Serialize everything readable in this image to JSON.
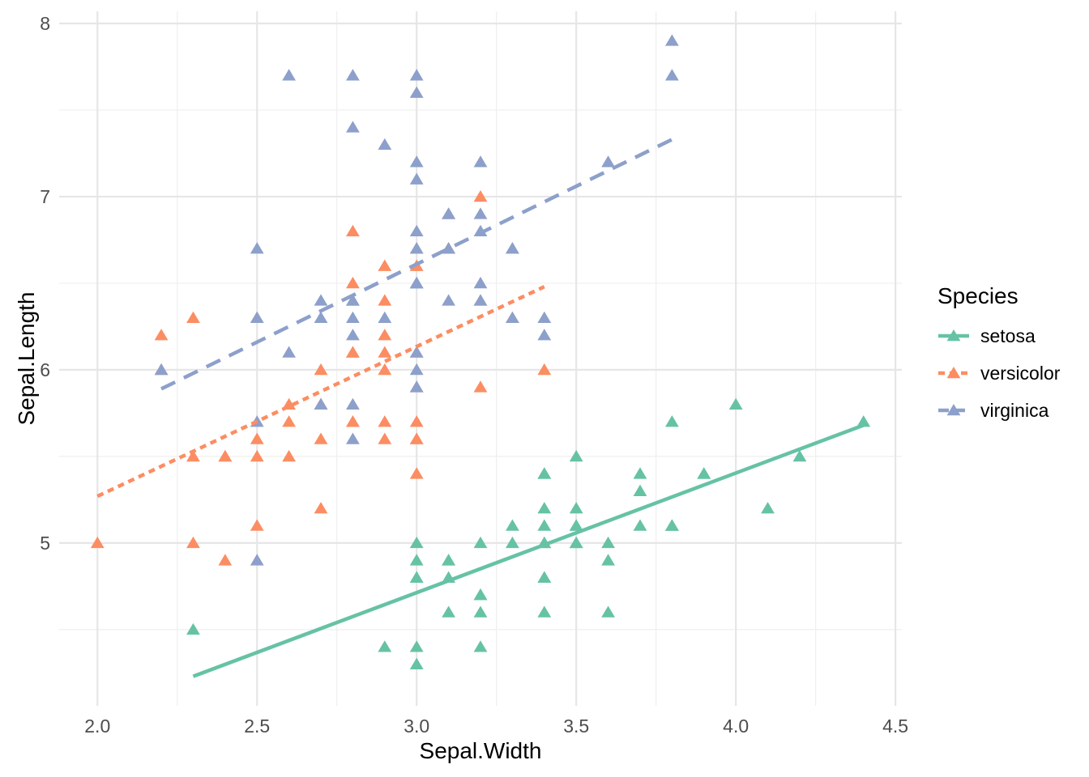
{
  "chart_data": {
    "type": "scatter",
    "title": "",
    "xlabel": "Sepal.Width",
    "ylabel": "Sepal.Length",
    "legend_title": "Species",
    "legend_position": "right",
    "marker": "filled-triangle",
    "grid": true,
    "background": "#ffffff",
    "grid_major_color": "#e6e6e6",
    "grid_minor_color": "#efefef",
    "tick_text_color": "#4d4d4d",
    "xlim": [
      1.88,
      4.52
    ],
    "ylim": [
      4.06,
      8.07
    ],
    "x_ticks": [
      2.0,
      2.5,
      3.0,
      3.5,
      4.0,
      4.5
    ],
    "x_tick_labels": [
      "2.0",
      "2.5",
      "3.0",
      "3.5",
      "4.0",
      "4.5"
    ],
    "x_minor_ticks": [
      2.25,
      2.75,
      3.25,
      3.75,
      4.25
    ],
    "y_ticks": [
      5,
      6,
      7,
      8
    ],
    "y_tick_labels": [
      "5",
      "6",
      "7",
      "8"
    ],
    "y_minor_ticks": [
      4.5,
      5.5,
      6.5,
      7.5
    ],
    "series": [
      {
        "name": "setosa",
        "color": "#66C2A5",
        "linetype": "solid",
        "trend_line": {
          "x": [
            2.3,
            4.4
          ],
          "y": [
            4.23,
            5.68
          ]
        },
        "points": [
          [
            3.5,
            5.1
          ],
          [
            3.0,
            4.9
          ],
          [
            3.2,
            4.7
          ],
          [
            3.1,
            4.6
          ],
          [
            3.6,
            5.0
          ],
          [
            3.9,
            5.4
          ],
          [
            3.4,
            4.6
          ],
          [
            3.4,
            5.0
          ],
          [
            2.9,
            4.4
          ],
          [
            3.1,
            4.9
          ],
          [
            3.7,
            5.4
          ],
          [
            3.4,
            4.8
          ],
          [
            3.0,
            4.8
          ],
          [
            3.0,
            4.3
          ],
          [
            4.0,
            5.8
          ],
          [
            4.4,
            5.7
          ],
          [
            3.9,
            5.4
          ],
          [
            3.5,
            5.1
          ],
          [
            3.8,
            5.7
          ],
          [
            3.8,
            5.1
          ],
          [
            3.4,
            5.4
          ],
          [
            3.7,
            5.1
          ],
          [
            3.6,
            4.6
          ],
          [
            3.3,
            5.1
          ],
          [
            3.4,
            4.8
          ],
          [
            3.0,
            5.0
          ],
          [
            3.4,
            5.0
          ],
          [
            3.5,
            5.2
          ],
          [
            3.4,
            5.2
          ],
          [
            3.2,
            4.7
          ],
          [
            3.1,
            4.8
          ],
          [
            3.4,
            5.4
          ],
          [
            4.1,
            5.2
          ],
          [
            4.2,
            5.5
          ],
          [
            3.1,
            4.9
          ],
          [
            3.2,
            5.0
          ],
          [
            3.5,
            5.5
          ],
          [
            3.6,
            4.9
          ],
          [
            3.0,
            4.4
          ],
          [
            3.4,
            5.1
          ],
          [
            3.5,
            5.0
          ],
          [
            2.3,
            4.5
          ],
          [
            3.2,
            4.4
          ],
          [
            3.5,
            5.0
          ],
          [
            3.8,
            5.1
          ],
          [
            3.0,
            4.8
          ],
          [
            3.8,
            5.1
          ],
          [
            3.2,
            4.6
          ],
          [
            3.7,
            5.3
          ],
          [
            3.3,
            5.0
          ]
        ]
      },
      {
        "name": "versicolor",
        "color": "#FC8D62",
        "linetype": "dotted",
        "trend_line": {
          "x": [
            2.0,
            3.4
          ],
          "y": [
            5.27,
            6.48
          ]
        },
        "points": [
          [
            3.2,
            7.0
          ],
          [
            3.2,
            6.4
          ],
          [
            3.1,
            6.9
          ],
          [
            2.3,
            5.5
          ],
          [
            2.8,
            6.5
          ],
          [
            2.8,
            5.7
          ],
          [
            3.3,
            6.3
          ],
          [
            2.4,
            4.9
          ],
          [
            2.9,
            6.6
          ],
          [
            2.7,
            5.2
          ],
          [
            2.0,
            5.0
          ],
          [
            3.0,
            5.9
          ],
          [
            2.2,
            6.0
          ],
          [
            2.9,
            6.1
          ],
          [
            2.9,
            5.6
          ],
          [
            3.1,
            6.7
          ],
          [
            3.0,
            5.6
          ],
          [
            2.7,
            5.8
          ],
          [
            2.2,
            6.2
          ],
          [
            2.5,
            5.6
          ],
          [
            3.2,
            5.9
          ],
          [
            2.8,
            6.1
          ],
          [
            2.5,
            6.3
          ],
          [
            2.8,
            6.1
          ],
          [
            2.9,
            6.4
          ],
          [
            3.0,
            6.6
          ],
          [
            2.8,
            6.8
          ],
          [
            3.0,
            6.7
          ],
          [
            2.9,
            6.0
          ],
          [
            2.6,
            5.7
          ],
          [
            2.4,
            5.5
          ],
          [
            2.4,
            5.5
          ],
          [
            2.7,
            5.8
          ],
          [
            2.7,
            6.0
          ],
          [
            3.0,
            5.4
          ],
          [
            3.4,
            6.0
          ],
          [
            3.1,
            6.7
          ],
          [
            2.3,
            6.3
          ],
          [
            3.0,
            5.6
          ],
          [
            2.5,
            5.5
          ],
          [
            2.6,
            5.5
          ],
          [
            3.0,
            6.1
          ],
          [
            2.6,
            5.8
          ],
          [
            2.3,
            5.0
          ],
          [
            2.7,
            5.6
          ],
          [
            3.0,
            5.7
          ],
          [
            2.9,
            5.7
          ],
          [
            2.9,
            6.2
          ],
          [
            2.5,
            5.1
          ],
          [
            2.8,
            5.7
          ]
        ]
      },
      {
        "name": "virginica",
        "color": "#8DA0CB",
        "linetype": "dashed",
        "trend_line": {
          "x": [
            2.2,
            3.8
          ],
          "y": [
            5.89,
            7.33
          ]
        },
        "points": [
          [
            3.3,
            6.3
          ],
          [
            2.7,
            5.8
          ],
          [
            3.0,
            7.1
          ],
          [
            2.9,
            6.3
          ],
          [
            3.0,
            6.5
          ],
          [
            3.0,
            7.6
          ],
          [
            2.5,
            4.9
          ],
          [
            2.9,
            7.3
          ],
          [
            2.5,
            6.7
          ],
          [
            3.6,
            7.2
          ],
          [
            3.2,
            6.5
          ],
          [
            2.7,
            6.4
          ],
          [
            3.0,
            6.8
          ],
          [
            2.5,
            5.7
          ],
          [
            2.8,
            5.8
          ],
          [
            3.2,
            6.4
          ],
          [
            3.0,
            6.5
          ],
          [
            3.8,
            7.7
          ],
          [
            2.6,
            7.7
          ],
          [
            2.2,
            6.0
          ],
          [
            3.2,
            6.9
          ],
          [
            2.8,
            5.6
          ],
          [
            2.8,
            7.7
          ],
          [
            2.7,
            6.3
          ],
          [
            3.3,
            6.7
          ],
          [
            3.2,
            7.2
          ],
          [
            2.8,
            6.2
          ],
          [
            3.0,
            6.1
          ],
          [
            2.8,
            6.4
          ],
          [
            3.0,
            7.2
          ],
          [
            2.8,
            7.4
          ],
          [
            3.8,
            7.9
          ],
          [
            2.8,
            6.4
          ],
          [
            2.8,
            6.3
          ],
          [
            2.6,
            6.1
          ],
          [
            3.0,
            7.7
          ],
          [
            3.4,
            6.3
          ],
          [
            3.1,
            6.4
          ],
          [
            3.0,
            6.0
          ],
          [
            3.1,
            6.9
          ],
          [
            3.1,
            6.7
          ],
          [
            3.1,
            6.9
          ],
          [
            2.7,
            5.8
          ],
          [
            3.2,
            6.8
          ],
          [
            3.3,
            6.7
          ],
          [
            3.0,
            6.7
          ],
          [
            2.5,
            6.3
          ],
          [
            3.0,
            6.5
          ],
          [
            3.4,
            6.2
          ],
          [
            3.0,
            5.9
          ]
        ]
      }
    ]
  }
}
